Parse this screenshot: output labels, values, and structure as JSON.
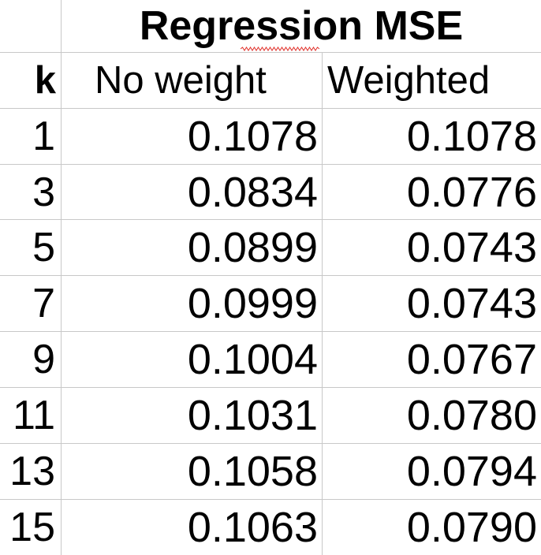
{
  "title": "Regression MSE",
  "columns": {
    "k": "k",
    "no_weight": "No weight",
    "weighted": "Weighted"
  },
  "rows": [
    {
      "k": "1",
      "no_weight": "0.1078",
      "weighted": "0.1078"
    },
    {
      "k": "3",
      "no_weight": "0.0834",
      "weighted": "0.0776"
    },
    {
      "k": "5",
      "no_weight": "0.0899",
      "weighted": "0.0743"
    },
    {
      "k": "7",
      "no_weight": "0.0999",
      "weighted": "0.0743"
    },
    {
      "k": "9",
      "no_weight": "0.1004",
      "weighted": "0.0767"
    },
    {
      "k": "11",
      "no_weight": "0.1031",
      "weighted": "0.0780"
    },
    {
      "k": "13",
      "no_weight": "0.1058",
      "weighted": "0.0794"
    },
    {
      "k": "15",
      "no_weight": "0.1063",
      "weighted": "0.0790"
    }
  ]
}
